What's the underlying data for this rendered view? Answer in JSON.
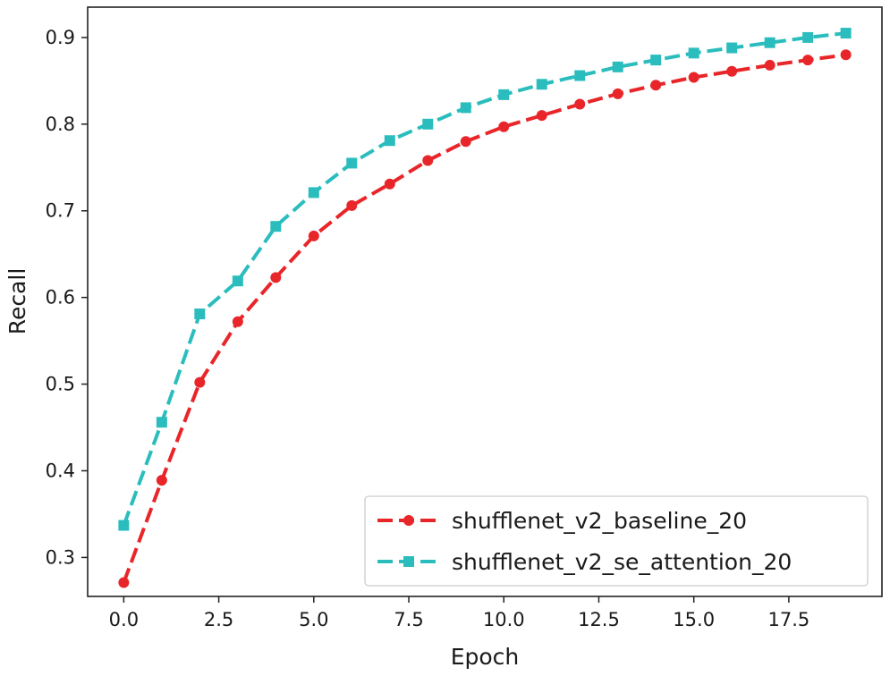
{
  "chart_data": {
    "type": "line",
    "title": "",
    "xlabel": "Epoch",
    "ylabel": "Recall",
    "xlim": [
      -0.95,
      19.95
    ],
    "ylim": [
      0.255,
      0.935
    ],
    "xticks": [
      0.0,
      2.5,
      5.0,
      7.5,
      10.0,
      12.5,
      15.0,
      17.5
    ],
    "xtick_labels": [
      "0.0",
      "2.5",
      "5.0",
      "7.5",
      "10.0",
      "12.5",
      "15.0",
      "17.5"
    ],
    "yticks": [
      0.3,
      0.4,
      0.5,
      0.6,
      0.7,
      0.8,
      0.9
    ],
    "ytick_labels": [
      "0.3",
      "0.4",
      "0.5",
      "0.6",
      "0.7",
      "0.8",
      "0.9"
    ],
    "grid": false,
    "legend_position": "bottom-right",
    "x": [
      0,
      1,
      2,
      3,
      4,
      5,
      6,
      7,
      8,
      9,
      10,
      11,
      12,
      13,
      14,
      15,
      16,
      17,
      18,
      19
    ],
    "series": [
      {
        "name": "shufflenet_v2_baseline_20",
        "color": "#e8262a",
        "marker": "circle",
        "values": [
          0.271,
          0.389,
          0.502,
          0.572,
          0.623,
          0.671,
          0.706,
          0.731,
          0.758,
          0.78,
          0.797,
          0.81,
          0.823,
          0.835,
          0.845,
          0.854,
          0.861,
          0.868,
          0.874,
          0.88
        ]
      },
      {
        "name": "shufflenet_v2_se_attention_20",
        "color": "#2bbdbd",
        "marker": "square",
        "values": [
          0.337,
          0.456,
          0.581,
          0.619,
          0.682,
          0.721,
          0.755,
          0.781,
          0.8,
          0.819,
          0.834,
          0.846,
          0.856,
          0.866,
          0.874,
          0.882,
          0.888,
          0.894,
          0.9,
          0.905
        ]
      }
    ]
  }
}
